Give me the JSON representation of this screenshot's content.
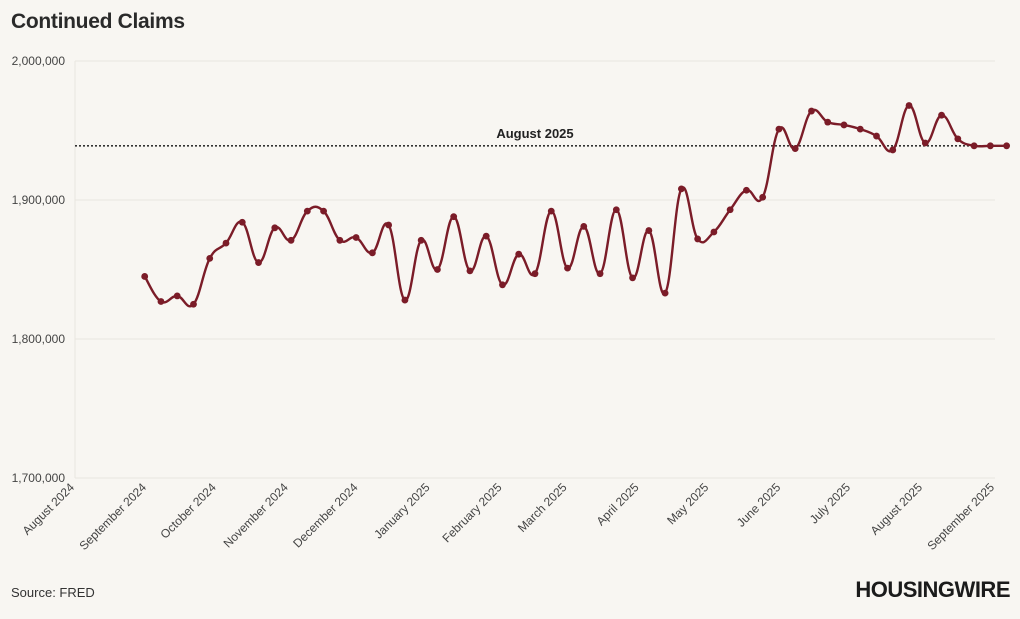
{
  "page": {
    "title": "Continued Claims",
    "source": "Source: FRED",
    "logo": "HOUSINGWIRE"
  },
  "colors": {
    "line": "#7b1c28",
    "grid": "#e9e6e0",
    "ref_line": "#333333",
    "background": "#f8f6f2"
  },
  "chart_data": {
    "type": "line",
    "title": "Continued Claims",
    "ylim": [
      1700000,
      2000000
    ],
    "y_ticks": [
      1700000,
      1800000,
      1900000,
      2000000
    ],
    "y_tick_labels": [
      "1,700,000",
      "1,800,000",
      "1,900,000",
      "2,000,000"
    ],
    "x_ticks": [
      "2024-08-01",
      "2024-09-01",
      "2024-10-01",
      "2024-11-01",
      "2024-12-01",
      "2025-01-01",
      "2025-02-01",
      "2025-03-01",
      "2025-04-01",
      "2025-05-01",
      "2025-06-01",
      "2025-07-01",
      "2025-08-01",
      "2025-09-01"
    ],
    "x_tick_labels": [
      "August 2024",
      "September 2024",
      "October 2024",
      "November 2024",
      "December 2024",
      "January 2025",
      "February 2025",
      "March 2025",
      "April 2025",
      "May 2025",
      "June 2025",
      "July 2025",
      "August 2025",
      "September 2025"
    ],
    "grid": true,
    "reference_line": {
      "label": "August 2025",
      "value": 1939000
    },
    "series": [
      {
        "x": [
          "2024-08-31",
          "2024-09-07",
          "2024-09-14",
          "2024-09-21",
          "2024-09-28",
          "2024-10-05",
          "2024-10-12",
          "2024-10-19",
          "2024-10-26",
          "2024-11-02",
          "2024-11-09",
          "2024-11-16",
          "2024-11-23",
          "2024-11-30",
          "2024-12-07",
          "2024-12-14",
          "2024-12-21",
          "2024-12-28",
          "2025-01-04",
          "2025-01-11",
          "2025-01-18",
          "2025-01-25",
          "2025-02-01",
          "2025-02-08",
          "2025-02-15",
          "2025-02-22",
          "2025-03-01",
          "2025-03-08",
          "2025-03-15",
          "2025-03-22",
          "2025-03-29",
          "2025-04-05",
          "2025-04-12",
          "2025-04-19",
          "2025-04-26",
          "2025-05-03",
          "2025-05-10",
          "2025-05-17",
          "2025-05-24",
          "2025-05-31",
          "2025-06-07",
          "2025-06-14",
          "2025-06-21",
          "2025-06-28",
          "2025-07-05",
          "2025-07-12",
          "2025-07-19",
          "2025-07-26",
          "2025-08-02",
          "2025-08-09",
          "2025-08-16",
          "2025-08-23",
          "2025-08-30",
          "2025-09-06"
        ],
        "values": [
          1845000,
          1827000,
          1831000,
          1825000,
          1858000,
          1869000,
          1884000,
          1855000,
          1880000,
          1871000,
          1892000,
          1892000,
          1871000,
          1873000,
          1862000,
          1882000,
          1828000,
          1871000,
          1850000,
          1888000,
          1849000,
          1874000,
          1839000,
          1861000,
          1847000,
          1892000,
          1851000,
          1881000,
          1847000,
          1893000,
          1844000,
          1878000,
          1833000,
          1908000,
          1872000,
          1877000,
          1893000,
          1907000,
          1902000,
          1951000,
          1937000,
          1964000,
          1956000,
          1954000,
          1951000,
          1946000,
          1936000,
          1968000,
          1941000,
          1961000,
          1944000,
          1939000,
          1939000,
          1939000
        ]
      }
    ]
  }
}
